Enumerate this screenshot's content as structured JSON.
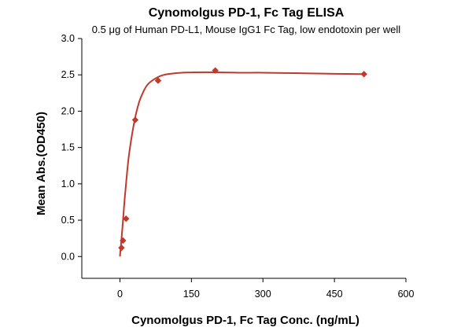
{
  "chart_data": {
    "type": "scatter",
    "title": "Cynomolgus PD-1, Fc Tag ELISA",
    "subtitle": "0.5 μg of Human PD-L1, Mouse IgG1 Fc Tag, low endotoxin per well",
    "xlabel": "Cynomolgus PD-1, Fc Tag Conc. (ng/mL)",
    "ylabel": "Mean Abs.(OD450)",
    "xlim": [
      -80,
      600
    ],
    "ylim": [
      -0.3,
      3.0
    ],
    "xticks": [
      0,
      150,
      300,
      450,
      600
    ],
    "yticks": [
      0.0,
      0.5,
      1.0,
      1.5,
      2.0,
      2.5,
      3.0
    ],
    "xtick_labels": [
      "0",
      "150",
      "300",
      "450",
      "600"
    ],
    "ytick_labels": [
      "0.0",
      "0.5",
      "1.0",
      "1.5",
      "2.0",
      "2.5",
      "3.0"
    ],
    "grid": false,
    "color": "#c0392b",
    "series": [
      {
        "marker": "diamond",
        "x": [
          3.2,
          6.4,
          12.8,
          32,
          80,
          200,
          512
        ],
        "y": [
          0.12,
          0.22,
          0.52,
          1.88,
          2.42,
          2.56,
          2.51
        ]
      }
    ],
    "fit_curve": {
      "type": "saturation",
      "x": [
        0,
        5,
        10,
        15,
        20,
        30,
        40,
        50,
        60,
        80,
        100,
        130,
        160,
        200,
        250,
        300,
        350,
        400,
        450,
        512
      ],
      "y": [
        0.0,
        0.38,
        0.8,
        1.16,
        1.45,
        1.85,
        2.12,
        2.28,
        2.38,
        2.47,
        2.51,
        2.53,
        2.535,
        2.535,
        2.53,
        2.53,
        2.525,
        2.52,
        2.515,
        2.51
      ]
    }
  }
}
